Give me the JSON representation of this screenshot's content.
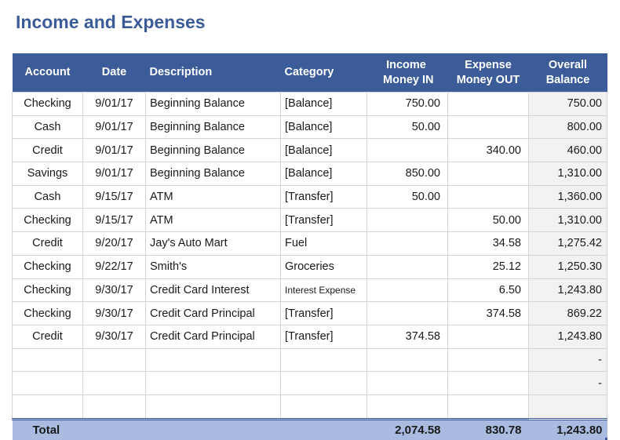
{
  "title": "Income and Expenses",
  "colors": {
    "header_bg": "#3b5c98",
    "title": "#3b5c98",
    "total_bg": "#a9bbe0",
    "balance_bg": "#f2f2f2"
  },
  "columns": [
    {
      "label": "Account"
    },
    {
      "label": "Date"
    },
    {
      "label": "Description"
    },
    {
      "label": "Category"
    },
    {
      "label_line1": "Income",
      "label_line2": "Money IN"
    },
    {
      "label_line1": "Expense",
      "label_line2": "Money OUT"
    },
    {
      "label_line1": "Overall",
      "label_line2": "Balance"
    }
  ],
  "rows": [
    {
      "account": "Checking",
      "date": "9/01/17",
      "description": "Beginning Balance",
      "category": "[Balance]",
      "income": "750.00",
      "expense": "",
      "balance": "750.00"
    },
    {
      "account": "Cash",
      "date": "9/01/17",
      "description": "Beginning Balance",
      "category": "[Balance]",
      "income": "50.00",
      "expense": "",
      "balance": "800.00"
    },
    {
      "account": "Credit",
      "date": "9/01/17",
      "description": "Beginning Balance",
      "category": "[Balance]",
      "income": "",
      "expense": "340.00",
      "balance": "460.00"
    },
    {
      "account": "Savings",
      "date": "9/01/17",
      "description": "Beginning Balance",
      "category": "[Balance]",
      "income": "850.00",
      "expense": "",
      "balance": "1,310.00"
    },
    {
      "account": "Cash",
      "date": "9/15/17",
      "description": "ATM",
      "category": "[Transfer]",
      "income": "50.00",
      "expense": "",
      "balance": "1,360.00"
    },
    {
      "account": "Checking",
      "date": "9/15/17",
      "description": "ATM",
      "category": "[Transfer]",
      "income": "",
      "expense": "50.00",
      "balance": "1,310.00"
    },
    {
      "account": "Credit",
      "date": "9/20/17",
      "description": "Jay's Auto Mart",
      "category": "Fuel",
      "income": "",
      "expense": "34.58",
      "balance": "1,275.42"
    },
    {
      "account": "Checking",
      "date": "9/22/17",
      "description": "Smith's",
      "category": "Groceries",
      "income": "",
      "expense": "25.12",
      "balance": "1,250.30"
    },
    {
      "account": "Checking",
      "date": "9/30/17",
      "description": "Credit Card Interest",
      "category": "Interest Expense",
      "income": "",
      "expense": "6.50",
      "balance": "1,243.80"
    },
    {
      "account": "Checking",
      "date": "9/30/17",
      "description": "Credit Card Principal",
      "category": "[Transfer]",
      "income": "",
      "expense": "374.58",
      "balance": "869.22"
    },
    {
      "account": "Credit",
      "date": "9/30/17",
      "description": "Credit Card Principal",
      "category": "[Transfer]",
      "income": "374.58",
      "expense": "",
      "balance": "1,243.80"
    },
    {
      "account": "",
      "date": "",
      "description": "",
      "category": "",
      "income": "",
      "expense": "",
      "balance": "-"
    },
    {
      "account": "",
      "date": "",
      "description": "",
      "category": "",
      "income": "",
      "expense": "",
      "balance": "-"
    },
    {
      "account": "",
      "date": "",
      "description": "",
      "category": "",
      "income": "",
      "expense": "",
      "balance": ""
    }
  ],
  "total": {
    "label": "Total",
    "income": "2,074.58",
    "expense": "830.78",
    "balance": "1,243.80"
  }
}
